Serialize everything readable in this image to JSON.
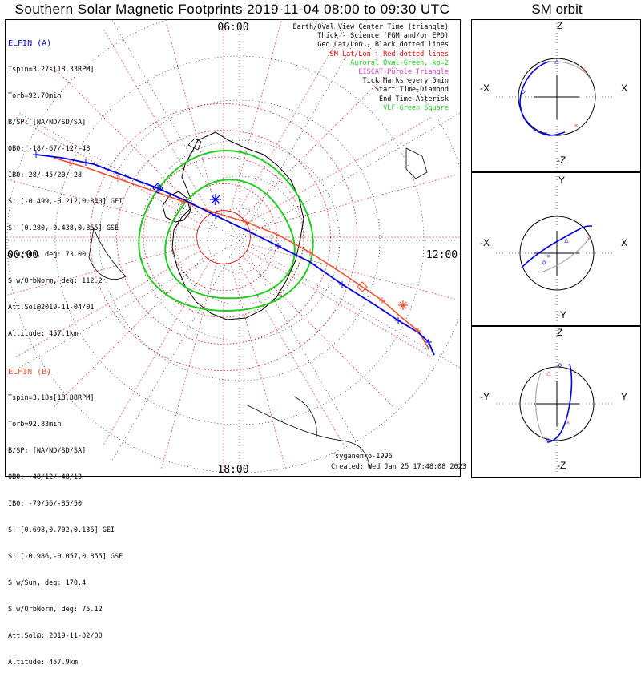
{
  "title": "Southern Solar Magnetic Footprints 2019-11-04 08:00 to 09:30 UTC",
  "orbit_title": "SM orbit",
  "colors": {
    "ela": "#0000e0",
    "elb": "#f05030",
    "geo": "#000000",
    "sm": "#e00000",
    "oval": "#22cc22",
    "eiscat": "#d040d0",
    "vlf": "#33cc33",
    "grey": "#aaaaaa"
  },
  "elfin_a": {
    "name": "ELFIN (A)",
    "lines": [
      "Tspin=3.27s[18.33RPM]",
      "Torb=92.70min",
      "B/SP: [NA/ND/SD/SA]",
      "OB0: -18/-67/-12/-48",
      "IB0: 28/-45/20/-28",
      "S: [-0.499,-0.212,0.840] GEI",
      "S: [0.280,-0.438,0.855] GSE",
      "S w/Sun, deg: 73.00",
      "S w/OrbNorm, deg: 112.2",
      "Att.Sol@2019-11-04/01",
      "Altitude: 457.1km"
    ]
  },
  "elfin_b": {
    "name": "ELFIN (B)",
    "lines": [
      "Tspin=3.18s[18.88RPM]",
      "Torb=92.83min",
      "B/SP: [NA/ND/SD/SA]",
      "OB0: -48/12/-48/13",
      "IB0: -79/56/-85/50",
      "S: [0.698,0.702,0.136] GEI",
      "S: [-0.986,-0.057,0.855] GSE",
      "S w/Sun, deg: 170.4",
      "S w/OrbNorm, deg: 75.12",
      "Att.Sol@: 2019-11-02/00",
      "Altitude: 457.9km"
    ]
  },
  "legend": [
    {
      "text": "Earth/Oval View Center Time (triangle)",
      "color": "#000000"
    },
    {
      "text": "Thick - Science (FGM and/or EPD)",
      "color": "#000000"
    },
    {
      "text": "Geo Lat/Lon - Black dotted lines",
      "color": "#000000"
    },
    {
      "text": "SM Lat/Lon - Red dotted lines",
      "color": "#e00000"
    },
    {
      "text": "Auroral Oval-Green, kp=2",
      "color": "#22cc22"
    },
    {
      "text": "EISCAT-Purple Triangle",
      "color": "#d040d0"
    },
    {
      "text": "Tick Marks every 5min",
      "color": "#000000"
    },
    {
      "text": "Start Time-Diamond",
      "color": "#000000"
    },
    {
      "text": "End Time-Asterisk",
      "color": "#000000"
    },
    {
      "text": "VLF-Green Square",
      "color": "#33cc33"
    }
  ],
  "credit": {
    "model": "Tsyganenko-1996",
    "created": "Created: Wed Jan 25 17:48:08 2023"
  },
  "chart_data": [
    {
      "type": "polar-map",
      "mlt_labels": {
        "top": "06:00",
        "left": "00:00",
        "right": "12:00",
        "bottom": "18:00"
      },
      "sm_lat_rings": [
        80,
        70,
        60,
        50,
        40
      ],
      "series": [
        {
          "name": "ELFIN (A)",
          "points": [
            [
              52,
              -31
            ],
            [
              58,
              -41
            ],
            [
              63,
              -48
            ],
            [
              70,
              -55
            ],
            [
              77,
              -66
            ],
            [
              84,
              -90
            ],
            [
              80,
              155
            ],
            [
              73,
              137
            ],
            [
              66,
              128
            ],
            [
              59,
              122
            ],
            [
              52,
              117
            ],
            [
              47,
              113
            ],
            [
              45,
              111
            ]
          ]
        },
        {
          "name": "ELFIN (B)",
          "points": [
            [
              58,
              -32
            ],
            [
              64,
              -40
            ],
            [
              70,
              -50
            ],
            [
              76,
              -64
            ],
            [
              82,
              -85
            ],
            [
              86,
              180
            ],
            [
              79,
              145
            ],
            [
              72,
              134
            ],
            [
              65,
              126
            ],
            [
              58,
              120
            ],
            [
              52,
              116
            ],
            [
              47,
              112
            ]
          ]
        }
      ],
      "auroral_oval_kp2": {
        "outer_lat": 68,
        "inner_lat": 74
      }
    },
    {
      "type": "orbit",
      "projection": "X-Z",
      "axes": [
        "Z",
        "-Z",
        "-X",
        "X"
      ]
    },
    {
      "type": "orbit",
      "projection": "X-Y",
      "axes": [
        "Y",
        "-Y",
        "-X",
        "X"
      ]
    },
    {
      "type": "orbit",
      "projection": "Y-Z",
      "axes": [
        "Z",
        "-Z",
        "-Y",
        "Y"
      ]
    }
  ]
}
